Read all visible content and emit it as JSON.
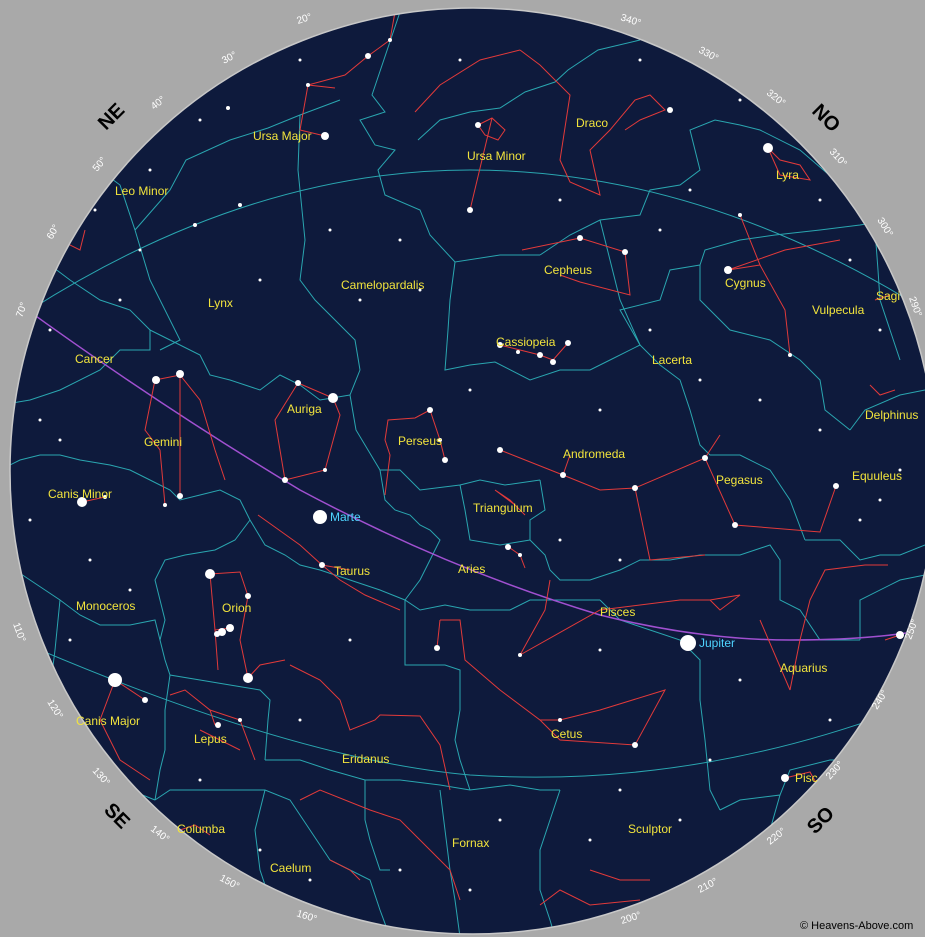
{
  "colors": {
    "background": "#a9a9a9",
    "sky": "#0e1a3c",
    "horizon_ring": "#c8c8c8",
    "boundaries": "#2aa6b0",
    "figures": "#e23a3a",
    "ecliptic": "#a050d0",
    "stars": "#ffffff",
    "constellation_labels": "#f2e43c",
    "planet_labels": "#4fd4ff"
  },
  "cardinal_labels": [
    "NE",
    "NO",
    "SO",
    "SE"
  ],
  "azimuth_labels": [
    "20°",
    "30°",
    "40°",
    "50°",
    "60°",
    "70°",
    "110°",
    "120°",
    "130°",
    "140°",
    "150°",
    "160°",
    "200°",
    "210°",
    "220°",
    "230°",
    "240°",
    "250°",
    "290°",
    "300°",
    "310°",
    "320°",
    "330°",
    "340°"
  ],
  "constellations": [
    "Ursa Major",
    "Leo Minor",
    "Lynx",
    "Camelopardalis",
    "Ursa Minor",
    "Draco",
    "Lyra",
    "Cepheus",
    "Cygnus",
    "Vulpecula",
    "Sagi",
    "Cassiopeia",
    "Lacerta",
    "Delphinus",
    "Cancer",
    "Gemini",
    "Auriga",
    "Perseus",
    "Andromeda",
    "Pegasus",
    "Equuleus",
    "Canis Minor",
    "Triangulum",
    "Taurus",
    "Aries",
    "Orion",
    "Monoceros",
    "Pisces",
    "Aquarius",
    "Canis Major",
    "Lepus",
    "Eridanus",
    "Cetus",
    "Pisc",
    "Columba",
    "Fornax",
    "Sculptor",
    "Caelum"
  ],
  "planets": [
    "Marte",
    "Jupiter"
  ],
  "credit": "© Heavens-Above.com",
  "features": [
    "horizon ring",
    "azimuth ticks",
    "constellation boundaries",
    "constellation figures",
    "ecliptic",
    "stars"
  ]
}
